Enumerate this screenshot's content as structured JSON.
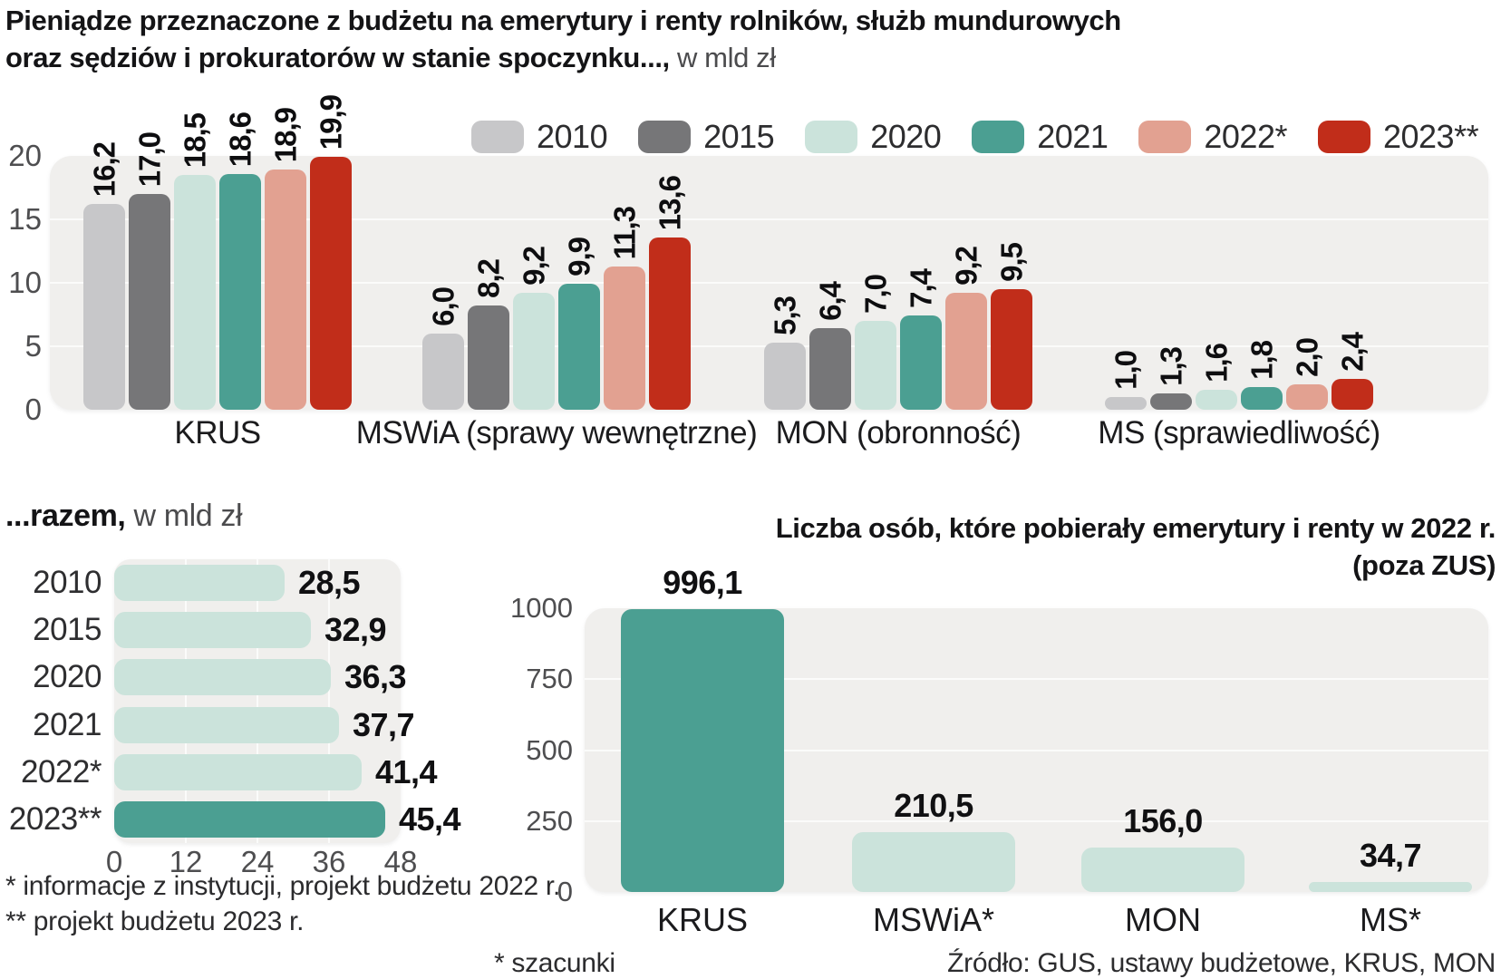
{
  "title": {
    "line1": "Pieniądze przeznaczone z budżetu na emerytury i renty rolników, służb mundurowych",
    "line2_bold": "oraz sędziów i prokuratorów w stanie spoczynku...,",
    "line2_unit": " w mld zł"
  },
  "palette": {
    "y2010": "#c7c7c9",
    "y2015": "#767678",
    "y2020": "#cbe3db",
    "y2021": "#4b9f92",
    "y2022": "#e2a191",
    "y2023": "#c12d1a",
    "plot_bg": "#f0efed",
    "grid": "#fbfbfa"
  },
  "section2": {
    "title_bold": "...razem,",
    "title_unit": " w mld zł"
  },
  "section3": {
    "title_line1": "Liczba osób, które pobierały emerytury i renty w 2022 r.",
    "title_line2": "(poza ZUS)"
  },
  "footnotes": {
    "fn1": "* informacje z instytucji, projekt budżetu 2022 r.",
    "fn2": "** projekt budżetu 2023 r.",
    "fn3": "* szacunki",
    "source": "Źródło: GUS, ustawy budżetowe, KRUS, MON"
  },
  "chart_data": [
    {
      "type": "bar",
      "title": "Pieniądze przeznaczone z budżetu na emerytury i renty rolników, służb mundurowych oraz sędziów i prokuratorów w stanie spoczynku..., w mld zł",
      "categories": [
        "KRUS",
        "MSWiA (sprawy wewnętrzne)",
        "MON (obronność)",
        "MS (sprawiedliwość)"
      ],
      "series": [
        {
          "name": "2010",
          "color": "#c7c7c9",
          "values": [
            16.2,
            6.0,
            5.3,
            1.0
          ]
        },
        {
          "name": "2015",
          "color": "#767678",
          "values": [
            17.0,
            8.2,
            6.4,
            1.3
          ]
        },
        {
          "name": "2020",
          "color": "#cbe3db",
          "values": [
            18.5,
            9.2,
            7.0,
            1.6
          ]
        },
        {
          "name": "2021",
          "color": "#4b9f92",
          "values": [
            18.6,
            9.9,
            7.4,
            1.8
          ]
        },
        {
          "name": "2022*",
          "color": "#e2a191",
          "values": [
            18.9,
            11.3,
            9.2,
            2.0
          ]
        },
        {
          "name": "2023**",
          "color": "#c12d1a",
          "values": [
            19.9,
            13.6,
            9.5,
            2.4
          ]
        }
      ],
      "yticks": [
        0,
        5,
        10,
        15,
        20
      ],
      "ylim": [
        0,
        20
      ],
      "legend_position": "top",
      "grid": "horizontal",
      "value_label_format": "comma-decimal, rotated 90deg"
    },
    {
      "type": "bar",
      "orientation": "horizontal",
      "title": "...razem, w mld zł",
      "categories": [
        "2010",
        "2015",
        "2020",
        "2021",
        "2022*",
        "2023**"
      ],
      "values": [
        28.5,
        32.9,
        36.3,
        37.7,
        41.4,
        45.4
      ],
      "bar_colors": [
        "#cbe3db",
        "#cbe3db",
        "#cbe3db",
        "#cbe3db",
        "#cbe3db",
        "#4b9f92"
      ],
      "xticks": [
        0,
        12,
        24,
        36,
        48
      ],
      "xlim": [
        0,
        48
      ],
      "grid": "vertical"
    },
    {
      "type": "bar",
      "title": "Liczba osób, które pobierały emerytury i renty w 2022 r. (poza ZUS)",
      "categories": [
        "KRUS",
        "MSWiA*",
        "MON",
        "MS*"
      ],
      "values": [
        996.1,
        210.5,
        156.0,
        34.7
      ],
      "bar_colors": [
        "#4b9f92",
        "#cbe3db",
        "#cbe3db",
        "#cbe3db"
      ],
      "yticks": [
        0,
        250,
        500,
        750,
        1000
      ],
      "ylim": [
        0,
        1000
      ],
      "grid": "horizontal"
    }
  ]
}
